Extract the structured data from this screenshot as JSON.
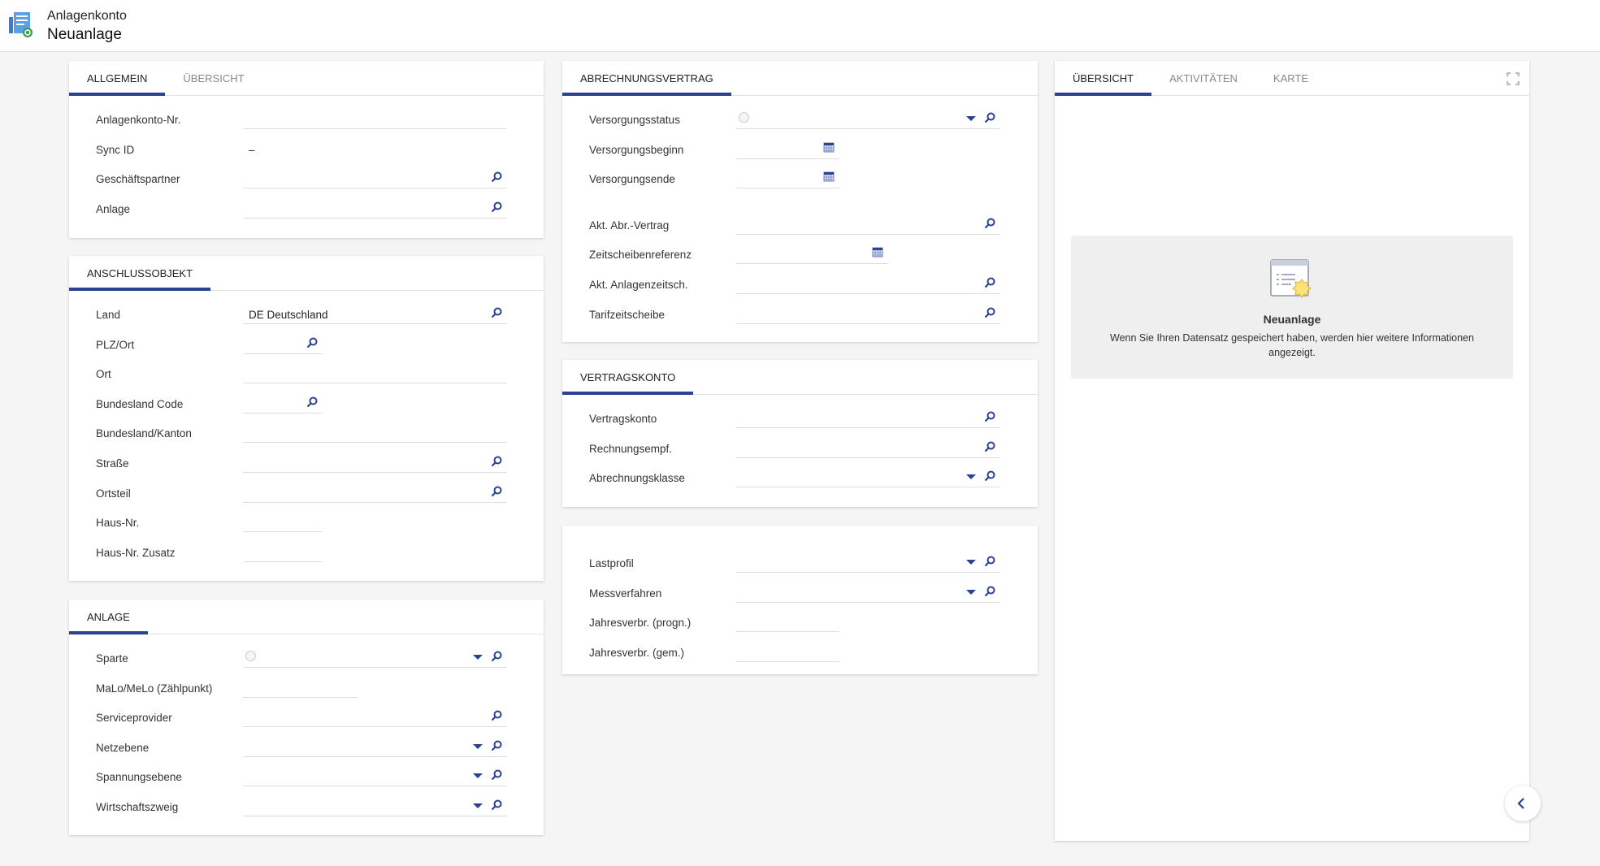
{
  "header": {
    "subtitle": "Anlagenkonto",
    "title": "Neuanlage"
  },
  "colors": {
    "accent": "#2b4293",
    "background": "#f5f5f5"
  },
  "allgemein": {
    "tabs": [
      "ALLGEMEIN",
      "ÜBERSICHT"
    ],
    "fields": [
      {
        "label": "Anlagenkonto-Nr.",
        "value": ""
      },
      {
        "label": "Sync ID",
        "value": "–"
      },
      {
        "label": "Geschäftspartner",
        "value": "",
        "icon": "search-icon"
      },
      {
        "label": "Anlage",
        "value": "",
        "icon": "search-icon"
      }
    ]
  },
  "anschlussobjekt": {
    "tabs": [
      "ANSCHLUSSOBJEKT"
    ],
    "fields": [
      {
        "label": "Land",
        "value": "DE Deutschland",
        "icon": "search-icon"
      },
      {
        "label": "PLZ/Ort",
        "value": "",
        "icon": "search-icon"
      },
      {
        "label": "Ort",
        "value": ""
      },
      {
        "label": "Bundesland Code",
        "value": "",
        "icon": "search-icon"
      },
      {
        "label": "Bundesland/Kanton",
        "value": ""
      },
      {
        "label": "Straße",
        "value": "",
        "icon": "search-icon"
      },
      {
        "label": "Ortsteil",
        "value": "",
        "icon": "search-icon"
      },
      {
        "label": "Haus-Nr.",
        "value": ""
      },
      {
        "label": "Haus-Nr. Zusatz",
        "value": ""
      }
    ]
  },
  "anlage": {
    "tabs": [
      "ANLAGE"
    ],
    "fields": [
      {
        "label": "Sparte",
        "value": "",
        "icon": "dropdown-search"
      },
      {
        "label": "MaLo/MeLo (Zählpunkt)",
        "value": ""
      },
      {
        "label": "Serviceprovider",
        "value": "",
        "icon": "search-icon"
      },
      {
        "label": "Netzebene",
        "value": "",
        "icon": "dropdown-search"
      },
      {
        "label": "Spannungsebene",
        "value": "",
        "icon": "dropdown-search"
      },
      {
        "label": "Wirtschaftszweig",
        "value": "",
        "icon": "dropdown-search"
      }
    ]
  },
  "abrechnungsvertrag": {
    "tabs": [
      "ABRECHNUNGSVERTRAG"
    ],
    "fields": [
      {
        "label": "Versorgungsstatus",
        "value": "",
        "icon": "dropdown-search"
      },
      {
        "label": "Versorgungsbeginn",
        "value": "",
        "icon": "calendar-icon"
      },
      {
        "label": "Versorgungsende",
        "value": "",
        "icon": "calendar-icon"
      },
      {
        "label": "Akt. Abr.-Vertrag",
        "value": "",
        "icon": "search-icon"
      },
      {
        "label": "Zeitscheibenreferenz",
        "value": "",
        "icon": "calendar-icon"
      },
      {
        "label": "Akt. Anlagenzeitsch.",
        "value": "",
        "icon": "search-icon"
      },
      {
        "label": "Tarifzeitscheibe",
        "value": "",
        "icon": "search-icon"
      }
    ]
  },
  "vertragskonto": {
    "tabs": [
      "VERTRAGSKONTO"
    ],
    "fields": [
      {
        "label": "Vertragskonto",
        "value": "",
        "icon": "search-icon"
      },
      {
        "label": "Rechnungsempf.",
        "value": "",
        "icon": "search-icon"
      },
      {
        "label": "Abrechnungsklasse",
        "value": "",
        "icon": "dropdown-search"
      }
    ]
  },
  "messung": {
    "fields": [
      {
        "label": "Lastprofil",
        "value": "",
        "icon": "dropdown-search"
      },
      {
        "label": "Messverfahren",
        "value": "",
        "icon": "dropdown-search"
      },
      {
        "label": "Jahresverbr. (progn.)",
        "value": ""
      },
      {
        "label": "Jahresverbr. (gem.)",
        "value": ""
      }
    ]
  },
  "side_panel": {
    "tabs": [
      "ÜBERSICHT",
      "AKTIVITÄTEN",
      "KARTE"
    ],
    "info_title": "Neuanlage",
    "info_text": "Wenn Sie Ihren Datensatz gespeichert haben, werden hier weitere Informationen angezeigt."
  }
}
